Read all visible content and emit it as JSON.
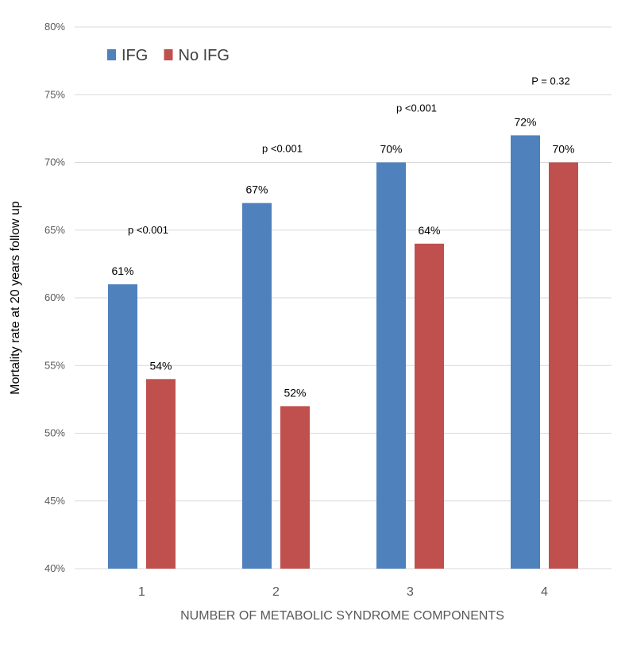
{
  "chart_data": {
    "type": "bar",
    "title": "",
    "xlabel": "NUMBER OF METABOLIC SYNDROME COMPONENTS",
    "ylabel": "Mortality rate at 20 years follow up",
    "categories": [
      "1",
      "2",
      "3",
      "4"
    ],
    "series": [
      {
        "name": "IFG",
        "values": [
          61,
          67,
          70,
          72
        ],
        "labels": [
          "61%",
          "67%",
          "70%",
          "72%"
        ],
        "color": "#4f81bd"
      },
      {
        "name": "No IFG",
        "values": [
          54,
          52,
          64,
          70
        ],
        "labels": [
          "54%",
          "52%",
          "64%",
          "70%"
        ],
        "color": "#c0504d"
      }
    ],
    "p_values": [
      "p <0.001",
      "p <0.001",
      "p <0.001",
      "P = 0.32"
    ],
    "ylim": [
      40,
      80
    ],
    "yticks": [
      40,
      45,
      50,
      55,
      60,
      65,
      70,
      75,
      80
    ],
    "ytick_labels": [
      "40%",
      "45%",
      "50%",
      "55%",
      "60%",
      "65%",
      "70%",
      "75%",
      "80%"
    ],
    "grid": true,
    "legend_position": "top-left"
  }
}
